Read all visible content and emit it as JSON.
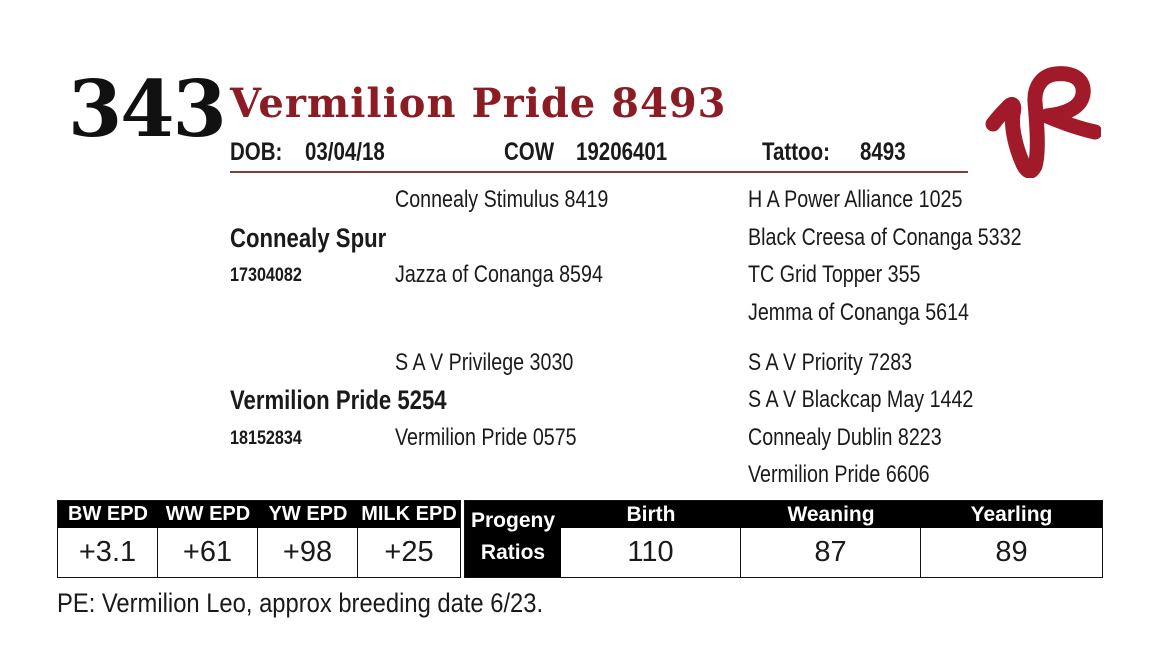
{
  "lot_number": "343",
  "animal_name": "Vermilion Pride 8493",
  "header": {
    "dob_label": "DOB:",
    "dob_value": "03/04/18",
    "reg_label": "COW",
    "reg_value": "19206401",
    "tattoo_label": "Tattoo:",
    "tattoo_value": "8493"
  },
  "pedigree": {
    "sire": {
      "name": "Connealy Spur",
      "reg": "17304082"
    },
    "sire_sire": "Connealy Stimulus 8419",
    "sire_dam": "Jazza of Conanga 8594",
    "sire_sire_sire": "H A Power Alliance 1025",
    "sire_sire_dam": "Black Creesa of Conanga 5332",
    "sire_dam_sire": "TC Grid Topper 355",
    "sire_dam_dam": "Jemma of Conanga 5614",
    "dam": {
      "name": "Vermilion Pride 5254",
      "reg": "18152834"
    },
    "dam_sire": "S A V Privilege 3030",
    "dam_dam": "Vermilion Pride 0575",
    "dam_sire_sire": "S A V Priority 7283",
    "dam_sire_dam": "S A V Blackcap May 1442",
    "dam_dam_sire": "Connealy Dublin 8223",
    "dam_dam_dam": "Vermilion Pride 6606"
  },
  "epd": {
    "headers": [
      "BW EPD",
      "WW EPD",
      "YW EPD",
      "MILK EPD"
    ],
    "values": [
      "+3.1",
      "+61",
      "+98",
      "+25"
    ]
  },
  "progeny": {
    "label_line1": "Progeny",
    "label_line2": "Ratios",
    "headers": [
      "Birth",
      "Weaning",
      "Yearling"
    ],
    "values": [
      "110",
      "87",
      "89"
    ]
  },
  "note": "PE:  Vermilion Leo, approx breeding date 6/23.",
  "logo_text": "VR",
  "colors": {
    "brand_red": "#8c1c24",
    "table_header": "#000000"
  }
}
